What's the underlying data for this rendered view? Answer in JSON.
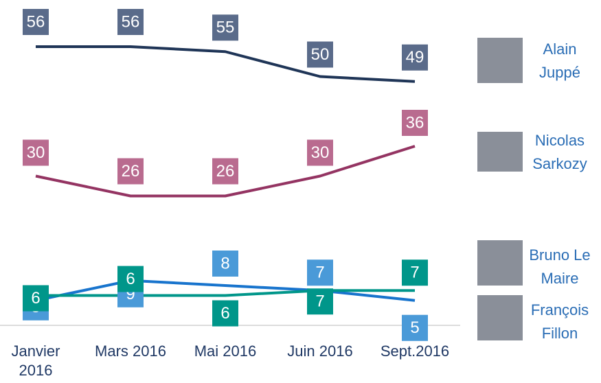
{
  "chart_data": {
    "type": "line",
    "categories": [
      "Janvier 2016",
      "Mars 2016",
      "Mai 2016",
      "Juin 2016",
      "Sept.2016"
    ],
    "ylim": [
      0,
      60
    ],
    "series": [
      {
        "name": "Alain Juppé",
        "color": "#1f3557",
        "label_color": "#5a6b8a",
        "values": [
          56,
          56,
          55,
          50,
          49
        ]
      },
      {
        "name": "Nicolas Sarkozy",
        "color": "#943462",
        "label_color": "#b96b8f",
        "values": [
          30,
          26,
          26,
          30,
          36
        ]
      },
      {
        "name": "Bruno Le Maire",
        "color": "#1874cd",
        "label_color": "#4a9ad8",
        "values": [
          5,
          9,
          8,
          7,
          5
        ]
      },
      {
        "name": "François Fillon",
        "color": "#00968a",
        "label_color": "#00968a",
        "values": [
          6,
          6,
          6,
          7,
          7
        ]
      }
    ]
  }
}
